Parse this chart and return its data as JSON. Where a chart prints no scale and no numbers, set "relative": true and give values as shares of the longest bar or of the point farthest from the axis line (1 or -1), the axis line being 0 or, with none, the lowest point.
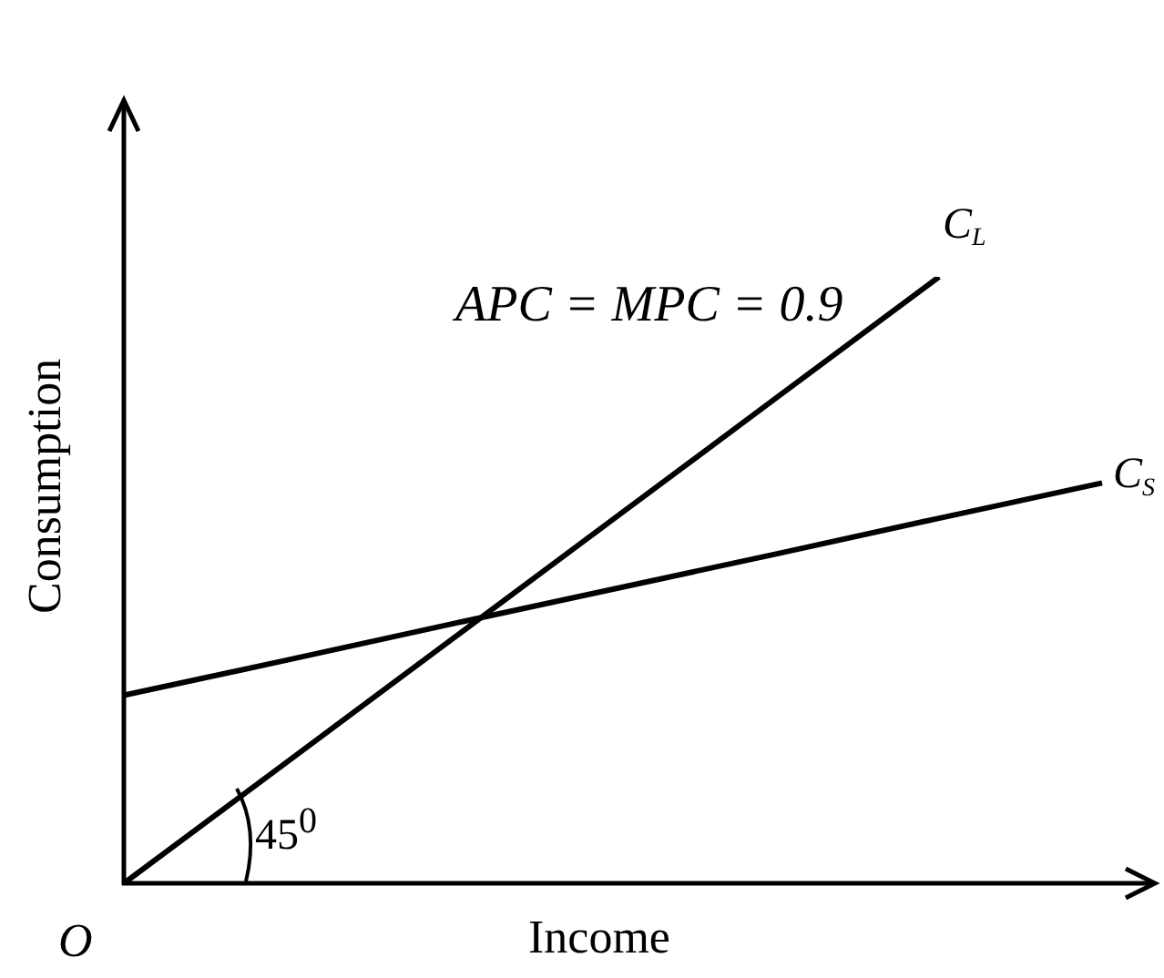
{
  "chart_data": {
    "type": "line",
    "relative": true,
    "xlabel": "Income",
    "ylabel": "Consumption",
    "categories": [
      null,
      null,
      null,
      null,
      null,
      null,
      null
    ],
    "series": [
      {
        "name": "C$_{L}$",
        "color": "#000000",
        "values": [
          0,
          0.2,
          0.4,
          0.6,
          0.8,
          1,
          null
        ]
      },
      {
        "name": "C$_{S}$",
        "color": "#000000",
        "values": [
          0.31,
          0.368,
          0.427,
          0.485,
          0.543,
          0.602,
          0.66
        ]
      }
    ],
    "annotations": [
      "APC = MPC = 0.9",
      "45$^{0}$",
      "O"
    ],
    "marker": "none",
    "grid": false,
    "legend": false,
    "tick_labels": false
  }
}
